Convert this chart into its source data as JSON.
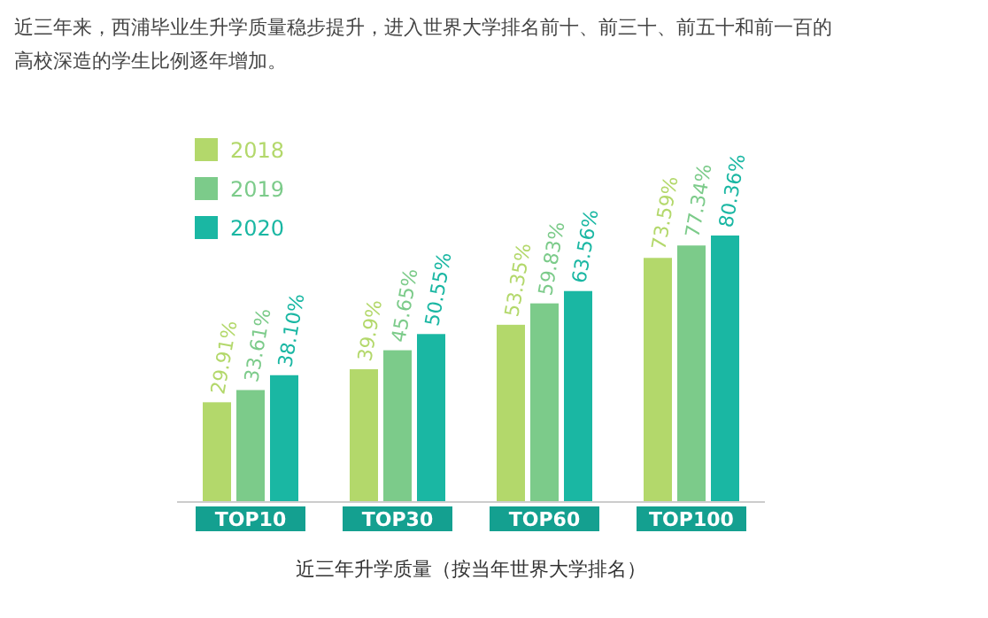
{
  "chart_data": {
    "type": "bar",
    "title": "近三年来，西浦毕业生升学质量稳步提升，进入世界大学排名前十、前三十、前五十和前一百的高校深造的学生比例逐年增加。",
    "xlabel": "近三年升学质量（按当年世界大学排名）",
    "categories": [
      "TOP10",
      "TOP30",
      "TOP60",
      "TOP100"
    ],
    "legend": "top left",
    "series": [
      {
        "name": "2018",
        "color": "#b3d86b",
        "values": [
          29.91,
          39.9,
          53.35,
          73.59
        ],
        "value_labels": [
          "29.91%",
          "39.9%",
          "53.35%",
          "73.59%"
        ]
      },
      {
        "name": "2019",
        "color": "#7ccb8a",
        "values": [
          33.61,
          45.65,
          59.83,
          77.34
        ],
        "value_labels": [
          "33.61%",
          "45.65%",
          "59.83%",
          "77.34%"
        ]
      },
      {
        "name": "2020",
        "color": "#1ab7a3",
        "values": [
          38.1,
          50.55,
          63.56,
          80.36
        ],
        "value_labels": [
          "38.10%",
          "50.55%",
          "63.56%",
          "80.36%"
        ]
      }
    ]
  }
}
